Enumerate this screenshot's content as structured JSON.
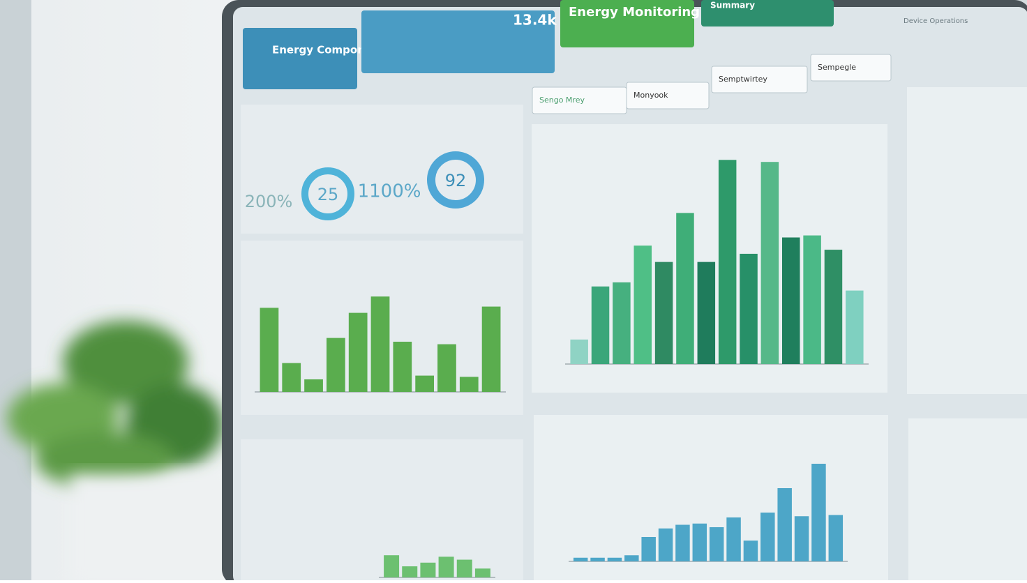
{
  "header_cards": [
    {
      "label": "Energy Components",
      "color": "#3d8fb8"
    },
    {
      "label": "13.4k",
      "color": "#4a9cc4"
    },
    {
      "label": "Energy Monitoring",
      "color": "#4caf50"
    },
    {
      "label": "Summary",
      "color": "#2e8f6e"
    }
  ],
  "corner_label": "Device Operations",
  "dropdowns": [
    "Sengo Mrey",
    "Monyook",
    "Semptwirtey",
    "Sempegle"
  ],
  "kpis": [
    "200%",
    "25",
    "1100%",
    "92"
  ],
  "charts": [
    {
      "type": "bar",
      "color": "#5aad4e",
      "ylim": [
        0,
        100
      ],
      "values": [
        67,
        23,
        10,
        43,
        63,
        76,
        40,
        13,
        38,
        12,
        68
      ]
    },
    {
      "type": "bar",
      "ylim": [
        0,
        110
      ],
      "colors": [
        "#8fd3c4",
        "#3aa67a",
        "#46b07f",
        "#4fbf86",
        "#2f8a62",
        "#3fae78",
        "#1f7c5c",
        "#2e9a6a",
        "#279068",
        "#56b889",
        "#1f7f5d",
        "#4bb987",
        "#2f8f65",
        "#7fd0c0"
      ],
      "values": [
        12,
        38,
        40,
        58,
        50,
        74,
        50,
        100,
        54,
        99,
        62,
        63,
        56,
        36
      ]
    },
    {
      "type": "bar",
      "color": "#4da6c8",
      "ylim": [
        0,
        100
      ],
      "values": [
        3,
        3,
        3,
        5,
        20,
        27,
        30,
        31,
        28,
        36,
        17,
        40,
        60,
        37,
        80,
        38
      ]
    },
    {
      "type": "bar",
      "color": "#6cc070",
      "ylim": [
        0,
        100
      ],
      "values": [
        30,
        15,
        20,
        28,
        24,
        12
      ]
    }
  ]
}
